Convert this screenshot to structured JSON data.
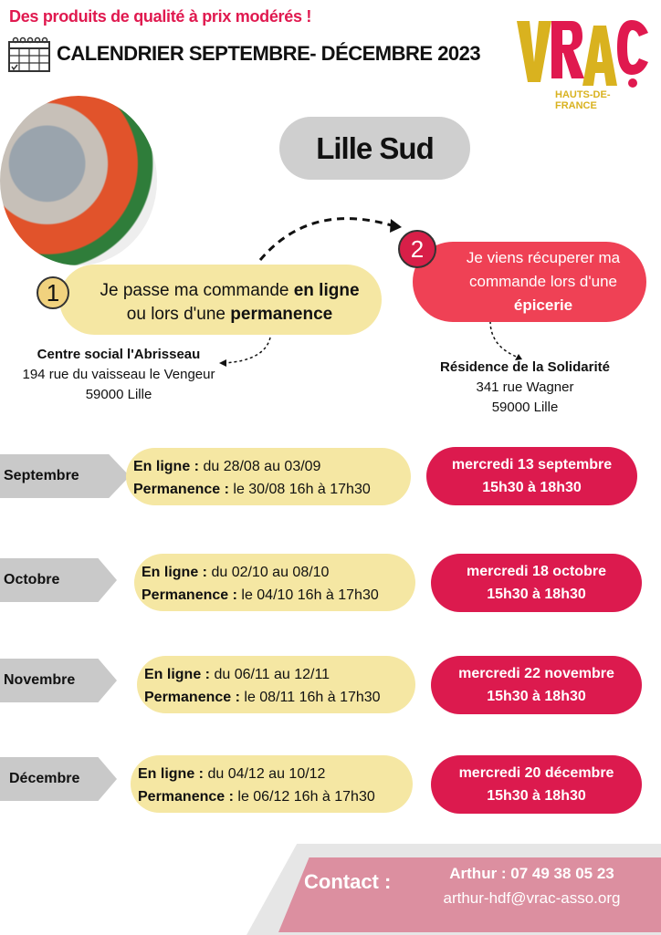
{
  "header": {
    "tagline": "Des produits de qualité à prix modérés !",
    "title": "CALENDRIER SEPTEMBRE- DÉCEMBRE 2023"
  },
  "logo": {
    "text": "VRAÇ",
    "subtitle": "HAUTS-DE-FRANCE",
    "colors": {
      "yellow": "#d9b21f",
      "pink": "#e0194f"
    }
  },
  "location": "Lille Sud",
  "step1": {
    "number": "1",
    "text_a": "Je passe ma commande ",
    "bold_a": "en ligne",
    "text_b": "ou lors d'une ",
    "bold_b": "permanence"
  },
  "step2": {
    "number": "2",
    "line1": "Je viens récuperer ma",
    "line2": "commande lors d'une",
    "bold": "épicerie"
  },
  "address1": {
    "name": "Centre social l'Abrisseau",
    "street": "194 rue du vaisseau le Vengeur",
    "city": "59000 Lille"
  },
  "address2": {
    "name": "Résidence de la Solidarité",
    "street": "341 rue Wagner",
    "city": "59000 Lille"
  },
  "labels": {
    "online": "En ligne :",
    "permanence": "Permanence  :"
  },
  "months": [
    {
      "name": "Septembre",
      "online": " du 28/08 au 03/09",
      "permanence": " le 30/08 16h à 17h30",
      "pickup_date": "mercredi 13 septembre",
      "pickup_time": "15h30 à 18h30"
    },
    {
      "name": "Octobre",
      "online": " du 02/10 au 08/10",
      "permanence": " le 04/10 16h à 17h30",
      "pickup_date": "mercredi 18 octobre",
      "pickup_time": "15h30 à 18h30"
    },
    {
      "name": "Novembre",
      "online": " du 06/11 au 12/11",
      "permanence": " le 08/11 16h à 17h30",
      "pickup_date": "mercredi 22 novembre",
      "pickup_time": "15h30 à 18h30"
    },
    {
      "name": "Décembre",
      "online": " du 04/12 au 10/12",
      "permanence": " le 06/12 16h à 17h30",
      "pickup_date": "mercredi 20 décembre",
      "pickup_time": "15h30 à 18h30"
    }
  ],
  "contact": {
    "label": "Contact :",
    "phone": "Arthur : 07 49 38 05 23",
    "email": "arthur-hdf@vrac-asso.org"
  }
}
